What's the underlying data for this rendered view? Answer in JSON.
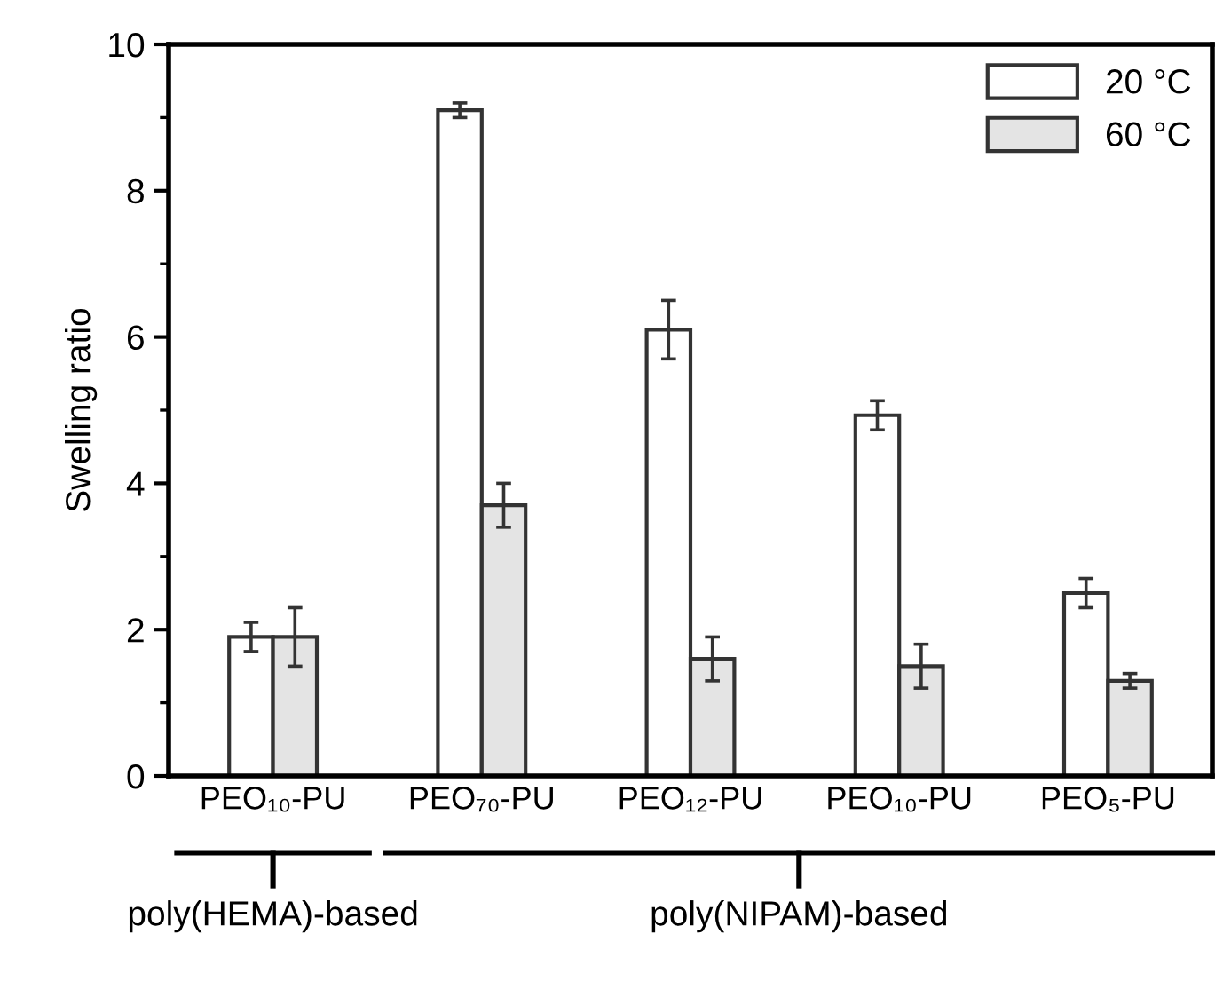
{
  "chart_data": {
    "type": "bar",
    "ylabel": "Swelling ratio",
    "categories": [
      "PEO₁₀-PU",
      "PEO₇₀-PU",
      "PEO₁₂-PU",
      "PEO₁₀-PU",
      "PEO₅-PU"
    ],
    "series": [
      {
        "name": "20 °C",
        "color": "#ffffff",
        "values": [
          1.9,
          9.1,
          6.1,
          4.93,
          2.5
        ],
        "errors": [
          0.2,
          0.1,
          0.4,
          0.2,
          0.2
        ]
      },
      {
        "name": "60 °C",
        "color": "#e4e4e4",
        "values": [
          1.9,
          3.7,
          1.6,
          1.5,
          1.3
        ],
        "errors": [
          0.4,
          0.3,
          0.3,
          0.3,
          0.1
        ]
      }
    ],
    "ylim": [
      0,
      10
    ],
    "yticks": [
      0,
      2,
      4,
      6,
      8,
      10
    ],
    "grid": false,
    "legend": "top right",
    "annotations": [
      "poly(HEMA)-based",
      "poly(NIPAM)-based"
    ]
  }
}
